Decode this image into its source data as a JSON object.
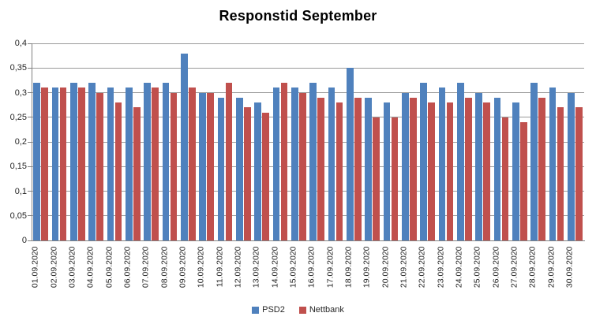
{
  "title": "Responstid September",
  "chart_data": {
    "type": "bar",
    "title": "Responstid September",
    "xlabel": "",
    "ylabel": "",
    "ylim": [
      0,
      0.4
    ],
    "ytick_step": 0.05,
    "y_tick_labels": [
      "0",
      "0,05",
      "0,1",
      "0,15",
      "0,2",
      "0,25",
      "0,3",
      "0,35",
      "0,4"
    ],
    "grid": true,
    "legend_position": "bottom",
    "categories": [
      "01.09.2020",
      "02.09.2020",
      "03.09.2020",
      "04.09.2020",
      "05.09.2020",
      "06.09.2020",
      "07.09.2020",
      "08.09.2020",
      "09.09.2020",
      "10.09.2020",
      "11.09.2020",
      "12.09.2020",
      "13.09.2020",
      "14.09.2020",
      "15.09.2020",
      "16.09.2020",
      "17.09.2020",
      "18.09.2020",
      "19.09.2020",
      "20.09.2020",
      "21.09.2020",
      "22.09.2020",
      "23.09.2020",
      "24.09.2020",
      "25.09.2020",
      "26.09.2020",
      "27.09.2020",
      "28.09.2020",
      "29.09.2020",
      "30.09.2020"
    ],
    "series": [
      {
        "name": "PSD2",
        "color": "#4F81BD",
        "values": [
          0.32,
          0.31,
          0.32,
          0.32,
          0.31,
          0.31,
          0.32,
          0.32,
          0.38,
          0.3,
          0.29,
          0.29,
          0.28,
          0.31,
          0.31,
          0.32,
          0.31,
          0.35,
          0.29,
          0.28,
          0.3,
          0.32,
          0.31,
          0.32,
          0.3,
          0.29,
          0.28,
          0.32,
          0.31,
          0.3
        ]
      },
      {
        "name": "Nettbank",
        "color": "#C0504D",
        "values": [
          0.31,
          0.31,
          0.31,
          0.3,
          0.28,
          0.27,
          0.31,
          0.3,
          0.31,
          0.3,
          0.32,
          0.27,
          0.26,
          0.32,
          0.3,
          0.29,
          0.28,
          0.29,
          0.25,
          0.25,
          0.29,
          0.28,
          0.28,
          0.29,
          0.28,
          0.25,
          0.24,
          0.29,
          0.27,
          0.27
        ]
      }
    ]
  },
  "colors": {
    "gridline": "#9a9a9a",
    "axis": "#808080",
    "text": "#262626"
  }
}
